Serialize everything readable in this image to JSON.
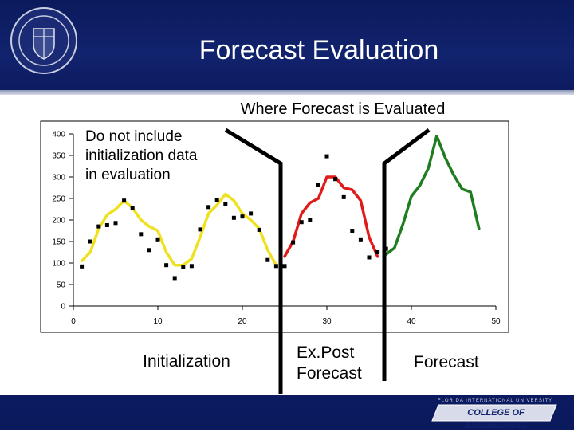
{
  "header": {
    "title": "Forecast Evaluation",
    "colors": {
      "band": "#0a1a5c",
      "rule": "#b0b6cf"
    }
  },
  "footer": {
    "logo_small_text": "FLORIDA INTERNATIONAL UNIVERSITY",
    "logo_label": "COLLEGE OF ENGINEERING"
  },
  "chart_data": {
    "type": "scatter",
    "title": "Where Forecast is Evaluated",
    "xlabel": "",
    "ylabel": "",
    "xlim": [
      0,
      50
    ],
    "ylim": [
      0,
      400
    ],
    "x_ticks": [
      0,
      10,
      20,
      30,
      40,
      50
    ],
    "y_ticks": [
      0,
      50,
      100,
      150,
      200,
      250,
      300,
      350,
      400
    ],
    "grid": false,
    "series": [
      {
        "kind": "points",
        "color": "#000000",
        "x": [
          1,
          2,
          3,
          4,
          5,
          6,
          7,
          8,
          9,
          10,
          11,
          12,
          13,
          14,
          15,
          16,
          17,
          18,
          19,
          20,
          21,
          22,
          23,
          24,
          25,
          26,
          27,
          28,
          29,
          30,
          31,
          32,
          33,
          34,
          35,
          36,
          37
        ],
        "y": [
          92,
          150,
          185,
          188,
          193,
          245,
          228,
          167,
          130,
          155,
          95,
          65,
          90,
          93,
          178,
          230,
          247,
          238,
          205,
          208,
          215,
          177,
          107,
          93,
          93,
          148,
          195,
          200,
          282,
          348,
          295,
          253,
          175,
          155,
          113,
          125,
          133
        ]
      },
      {
        "kind": "line",
        "color": "#f0e11e",
        "x": [
          1,
          2,
          3,
          4,
          5,
          6,
          7,
          8,
          9,
          10,
          11,
          12,
          13,
          14,
          15,
          16,
          17,
          18,
          19,
          20,
          21,
          22,
          23,
          24
        ],
        "y": [
          105,
          125,
          180,
          212,
          225,
          245,
          228,
          200,
          185,
          175,
          125,
          95,
          95,
          110,
          160,
          215,
          235,
          260,
          245,
          215,
          200,
          180,
          130,
          95
        ]
      },
      {
        "kind": "line",
        "color": "#e01b1b",
        "x": [
          25,
          26,
          27,
          28,
          29,
          30,
          31,
          32,
          33,
          34,
          35,
          36
        ],
        "y": [
          115,
          150,
          215,
          240,
          250,
          300,
          300,
          275,
          270,
          245,
          160,
          115
        ]
      },
      {
        "kind": "line",
        "color": "#1e7d1e",
        "x": [
          37,
          38,
          39,
          40,
          41,
          42,
          43,
          44,
          45,
          46,
          47,
          48
        ],
        "y": [
          120,
          135,
          190,
          255,
          280,
          320,
          395,
          345,
          305,
          272,
          265,
          180
        ]
      }
    ],
    "annotations": {
      "note": [
        "Do not include",
        "initialization data",
        "in evaluation"
      ],
      "regions": [
        "Initialization",
        "Ex.Post",
        "Forecast",
        "Forecast"
      ]
    }
  }
}
